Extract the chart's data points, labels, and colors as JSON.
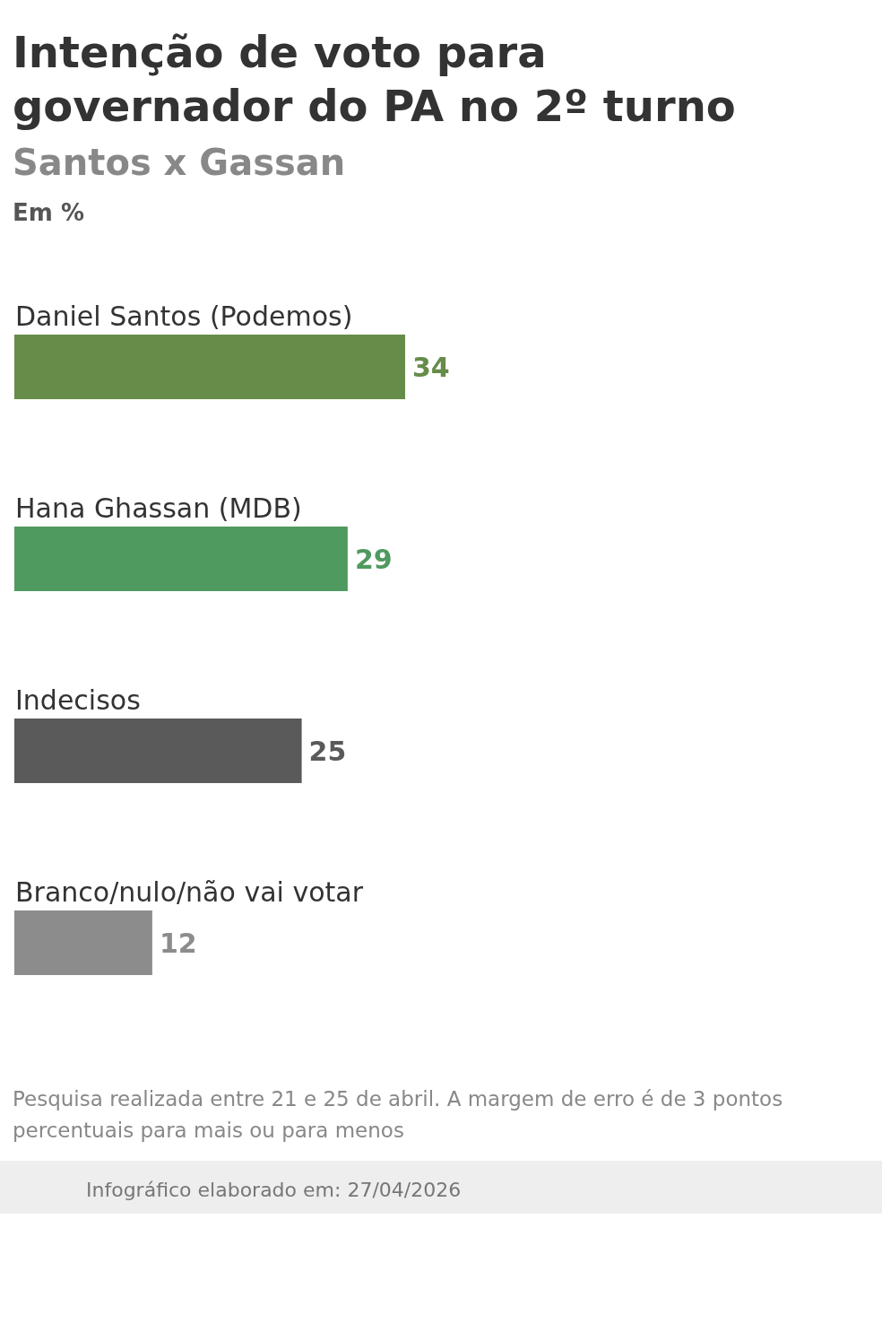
{
  "chart_data": {
    "type": "bar",
    "orientation": "horizontal",
    "title": "Intenção de voto para governador do PA no 2º turno",
    "subtitle": "Santos x Gassan",
    "xlabel": "Em %",
    "categories": [
      "Daniel Santos (Podemos)",
      "Hana Ghassan (MDB)",
      "Indecisos",
      "Branco/nulo/não vai votar"
    ],
    "values": [
      34,
      29,
      25,
      12
    ],
    "colors": [
      "#668c4a",
      "#4f9a5f",
      "#5a5a5a",
      "#8c8c8c"
    ],
    "data_labels": true,
    "annotations": [
      "Pesquisa realizada entre 21 e 25 de abril. A margem de erro é de 3 pontos percentuais para mais ou para menos",
      "Infográfico elaborado em: 27/04/2026"
    ]
  }
}
